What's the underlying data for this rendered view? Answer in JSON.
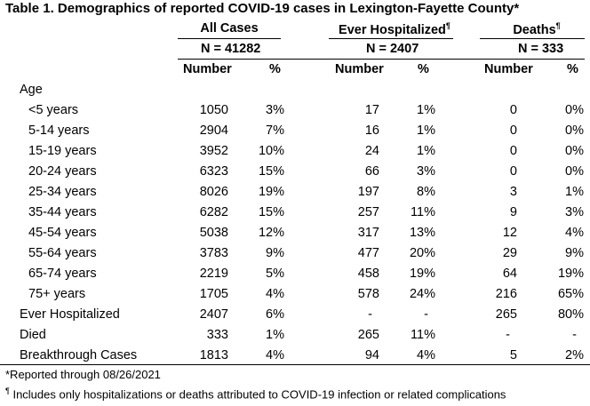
{
  "title": "Table 1. Demographics of reported COVID-19 cases in Lexington-Fayette County*",
  "groups": [
    {
      "name": "All Cases",
      "n": "N = 41282",
      "mark": ""
    },
    {
      "name": "Ever Hospitalized",
      "n": "N = 2407",
      "mark": "¶"
    },
    {
      "name": "Deaths",
      "n": "N = 333",
      "mark": "¶"
    }
  ],
  "subheaders": {
    "number": "Number",
    "pct": "%"
  },
  "age_header": "Age",
  "rows": [
    {
      "label": "<5 years",
      "c": [
        "1050",
        "3%",
        "17",
        "1%",
        "0",
        "0%"
      ]
    },
    {
      "label": "5-14 years",
      "c": [
        "2904",
        "7%",
        "16",
        "1%",
        "0",
        "0%"
      ]
    },
    {
      "label": "15-19 years",
      "c": [
        "3952",
        "10%",
        "24",
        "1%",
        "0",
        "0%"
      ]
    },
    {
      "label": "20-24 years",
      "c": [
        "6323",
        "15%",
        "66",
        "3%",
        "0",
        "0%"
      ]
    },
    {
      "label": "25-34 years",
      "c": [
        "8026",
        "19%",
        "197",
        "8%",
        "3",
        "1%"
      ]
    },
    {
      "label": "35-44 years",
      "c": [
        "6282",
        "15%",
        "257",
        "11%",
        "9",
        "3%"
      ]
    },
    {
      "label": "45-54 years",
      "c": [
        "5038",
        "12%",
        "317",
        "13%",
        "12",
        "4%"
      ]
    },
    {
      "label": "55-64 years",
      "c": [
        "3783",
        "9%",
        "477",
        "20%",
        "29",
        "9%"
      ]
    },
    {
      "label": "65-74 years",
      "c": [
        "2219",
        "5%",
        "458",
        "19%",
        "64",
        "19%"
      ]
    },
    {
      "label": "75+ years",
      "c": [
        "1705",
        "4%",
        "578",
        "24%",
        "216",
        "65%"
      ]
    },
    {
      "label": "Ever Hospitalized",
      "c": [
        "2407",
        "6%",
        "-",
        "-",
        "265",
        "80%"
      ]
    },
    {
      "label": "Died",
      "c": [
        "333",
        "1%",
        "265",
        "11%",
        "-",
        "-"
      ]
    },
    {
      "label": "Breakthrough Cases",
      "c": [
        "1813",
        "4%",
        "94",
        "4%",
        "5",
        "2%"
      ]
    }
  ],
  "footnotes": [
    {
      "mark": "",
      "text": "*Reported through 08/26/2021"
    },
    {
      "mark": "¶",
      "text": " Includes only hospitalizations or deaths attributed to COVID-19 infection or related complications"
    }
  ]
}
